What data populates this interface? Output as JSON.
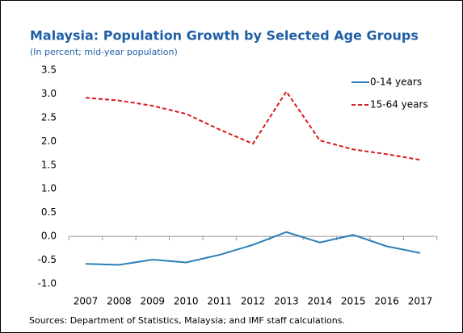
{
  "chart_data": {
    "type": "line",
    "title": "Malaysia: Population Growth by Selected Age Groups",
    "subtitle": "(In percent; mid-year population)",
    "source": "Sources: Department of Statistics, Malaysia; and IMF staff calculations.",
    "categories": [
      "2007",
      "2008",
      "2009",
      "2010",
      "2011",
      "2012",
      "2013",
      "2014",
      "2015",
      "2016",
      "2017"
    ],
    "series": [
      {
        "name": "0-14 years",
        "color": "#2a7fb8",
        "style": "solid",
        "values": [
          -0.58,
          -0.6,
          -0.49,
          -0.55,
          -0.39,
          -0.18,
          0.09,
          -0.13,
          0.03,
          -0.21,
          -0.35
        ]
      },
      {
        "name": "15-64 years",
        "color": "#d7191c",
        "style": "dashed",
        "values": [
          2.92,
          2.86,
          2.75,
          2.58,
          2.25,
          1.95,
          3.05,
          2.02,
          1.83,
          1.73,
          1.61
        ]
      }
    ],
    "ylim": [
      -1.0,
      3.5
    ],
    "yticks": [
      {
        "value": -1.0,
        "label": "-1.0"
      },
      -0.5,
      {
        "value": 0,
        "label": "0.0"
      },
      0.5,
      {
        "value": 1,
        "label": "1.0"
      },
      1.5,
      {
        "value": 2,
        "label": "2.0"
      },
      2.5,
      {
        "value": 3,
        "label": "3.0"
      },
      3.5
    ],
    "legend": "top-right"
  }
}
